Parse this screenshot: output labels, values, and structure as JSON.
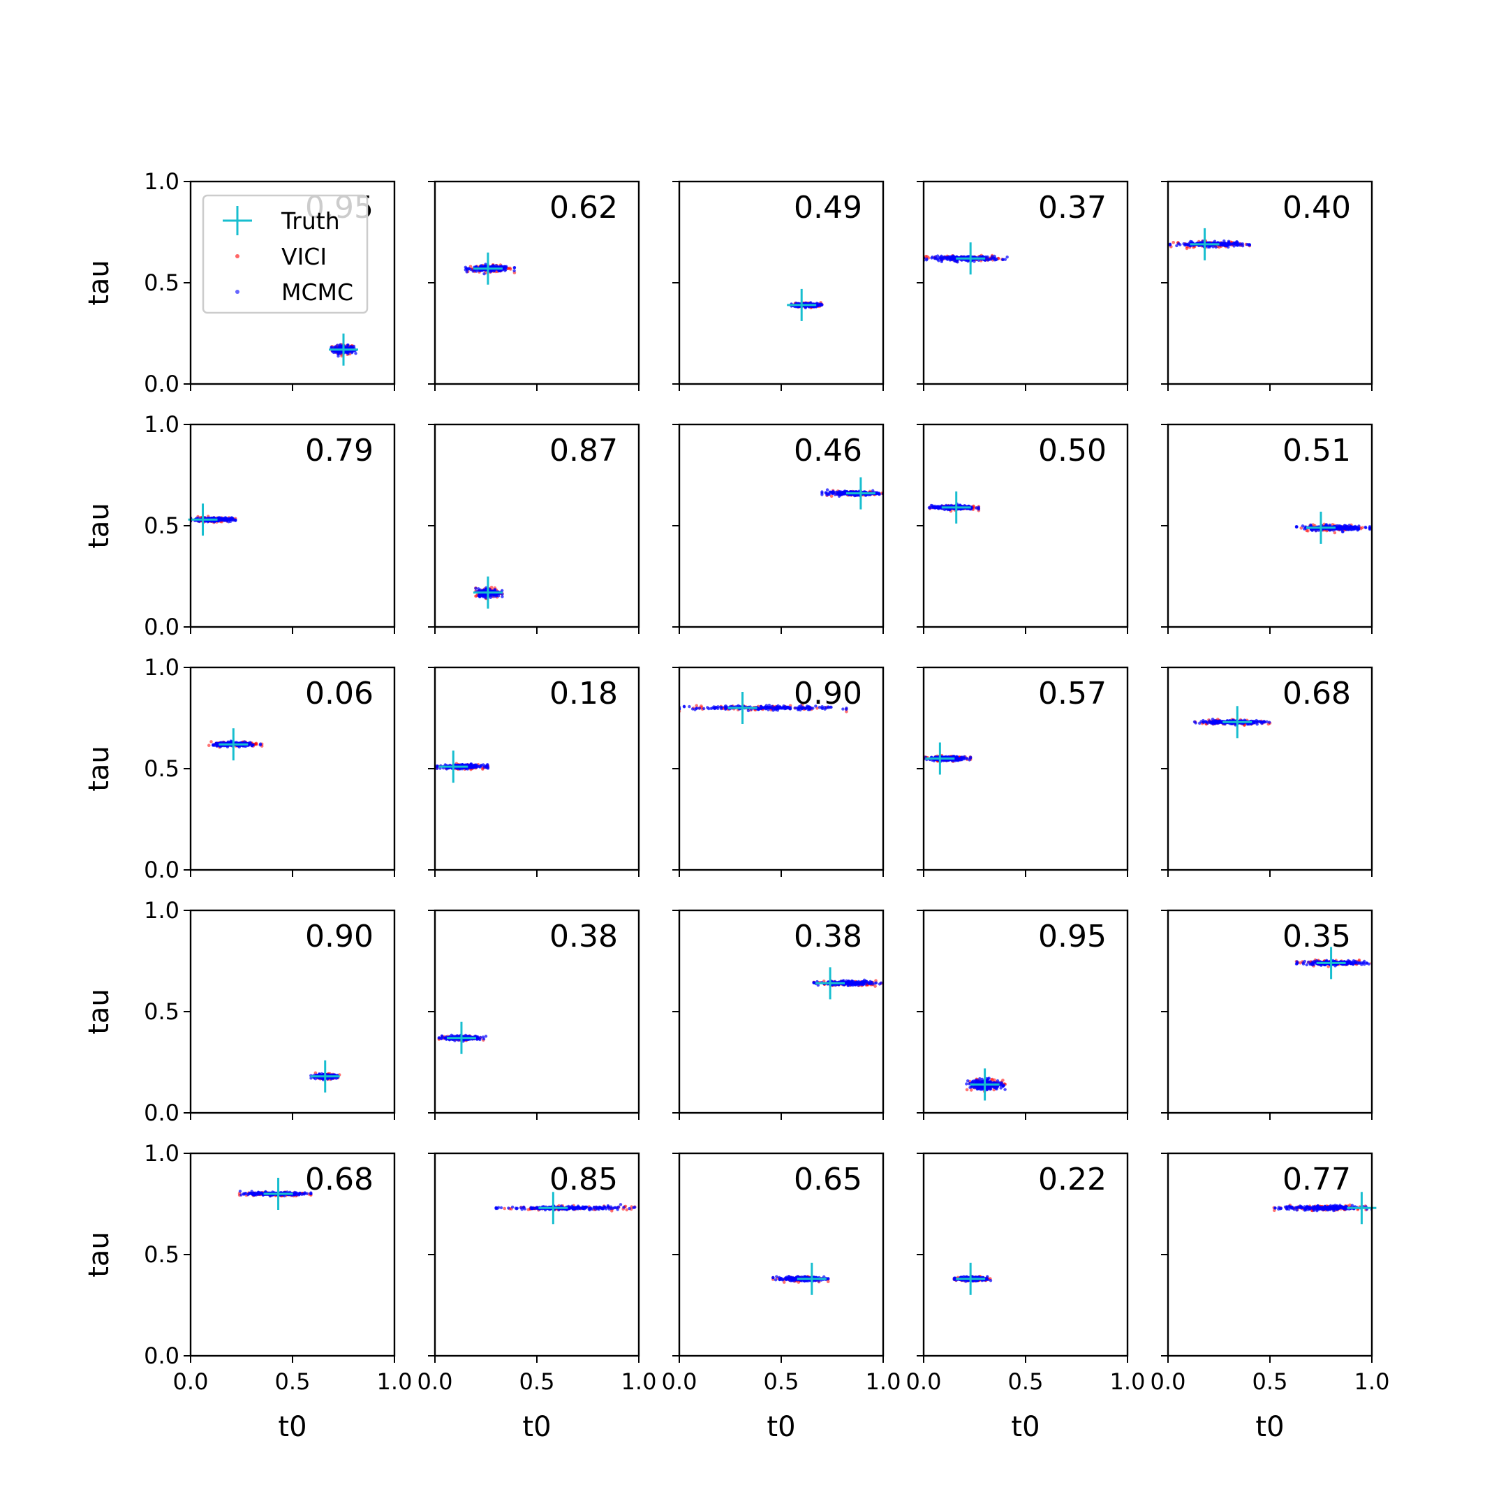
{
  "chart_data": {
    "type": "scatter",
    "rows": 5,
    "cols": 5,
    "xlabel": "t0",
    "ylabel": "tau",
    "xlim": [
      0,
      1
    ],
    "ylim": [
      0,
      1
    ],
    "xticks": [
      0,
      0.5,
      1
    ],
    "yticks": [
      0,
      0.5,
      1
    ],
    "xtick_labels": [
      "0.0",
      "0.5",
      "1.0"
    ],
    "ytick_labels": [
      "0.0",
      "0.5",
      "1.0"
    ],
    "legend": {
      "placement": "upper-left",
      "panel": 0,
      "entries": [
        {
          "label": "Truth",
          "color": "#17becf",
          "marker": "plus"
        },
        {
          "label": "VICI",
          "color": "#ff0000",
          "marker": "dot"
        },
        {
          "label": "MCMC",
          "color": "#0000ff",
          "marker": "dot"
        }
      ]
    },
    "colors": {
      "truth": "#17becf",
      "vici": "#ff0000",
      "mcmc": "#0000ff"
    },
    "panels": [
      {
        "label": "0.95",
        "truth": [
          0.75,
          0.17
        ],
        "t0_range": [
          0.69,
          0.81
        ],
        "tau_spread": 0.012
      },
      {
        "label": "0.62",
        "truth": [
          0.26,
          0.57
        ],
        "t0_range": [
          0.15,
          0.39
        ],
        "tau_spread": 0.008
      },
      {
        "label": "0.49",
        "truth": [
          0.6,
          0.39
        ],
        "t0_range": [
          0.55,
          0.7
        ],
        "tau_spread": 0.006
      },
      {
        "label": "0.37",
        "truth": [
          0.23,
          0.62
        ],
        "t0_range": [
          0.0,
          0.41
        ],
        "tau_spread": 0.007
      },
      {
        "label": "0.40",
        "truth": [
          0.18,
          0.69
        ],
        "t0_range": [
          0.01,
          0.4
        ],
        "tau_spread": 0.007
      },
      {
        "label": "0.79",
        "truth": [
          0.06,
          0.53
        ],
        "t0_range": [
          0.0,
          0.22
        ],
        "tau_spread": 0.006
      },
      {
        "label": "0.87",
        "truth": [
          0.26,
          0.17
        ],
        "t0_range": [
          0.2,
          0.33
        ],
        "tau_spread": 0.012
      },
      {
        "label": "0.46",
        "truth": [
          0.89,
          0.66
        ],
        "t0_range": [
          0.7,
          1.0
        ],
        "tau_spread": 0.006
      },
      {
        "label": "0.50",
        "truth": [
          0.16,
          0.59
        ],
        "t0_range": [
          0.02,
          0.27
        ],
        "tau_spread": 0.006
      },
      {
        "label": "0.51",
        "truth": [
          0.75,
          0.49
        ],
        "t0_range": [
          0.63,
          0.99
        ],
        "tau_spread": 0.008
      },
      {
        "label": "0.06",
        "truth": [
          0.21,
          0.62
        ],
        "t0_range": [
          0.09,
          0.35
        ],
        "tau_spread": 0.006
      },
      {
        "label": "0.18",
        "truth": [
          0.09,
          0.51
        ],
        "t0_range": [
          0.01,
          0.26
        ],
        "tau_spread": 0.006
      },
      {
        "label": "0.90",
        "truth": [
          0.31,
          0.8
        ],
        "t0_range": [
          0.0,
          0.82
        ],
        "tau_spread": 0.006
      },
      {
        "label": "0.57",
        "truth": [
          0.08,
          0.55
        ],
        "t0_range": [
          0.0,
          0.23
        ],
        "tau_spread": 0.006
      },
      {
        "label": "0.68",
        "truth": [
          0.34,
          0.73
        ],
        "t0_range": [
          0.13,
          0.5
        ],
        "tau_spread": 0.006
      },
      {
        "label": "0.90",
        "truth": [
          0.66,
          0.18
        ],
        "t0_range": [
          0.59,
          0.73
        ],
        "tau_spread": 0.006
      },
      {
        "label": "0.38",
        "truth": [
          0.13,
          0.37
        ],
        "t0_range": [
          0.02,
          0.25
        ],
        "tau_spread": 0.006
      },
      {
        "label": "0.38",
        "truth": [
          0.74,
          0.64
        ],
        "t0_range": [
          0.66,
          0.99
        ],
        "tau_spread": 0.006
      },
      {
        "label": "0.95",
        "truth": [
          0.3,
          0.14
        ],
        "t0_range": [
          0.21,
          0.4
        ],
        "tau_spread": 0.015
      },
      {
        "label": "0.35",
        "truth": [
          0.8,
          0.74
        ],
        "t0_range": [
          0.63,
          1.0
        ],
        "tau_spread": 0.006
      },
      {
        "label": "0.68",
        "truth": [
          0.43,
          0.8
        ],
        "t0_range": [
          0.24,
          0.59
        ],
        "tau_spread": 0.005
      },
      {
        "label": "0.85",
        "truth": [
          0.58,
          0.73
        ],
        "t0_range": [
          0.3,
          0.98
        ],
        "tau_spread": 0.005
      },
      {
        "label": "0.65",
        "truth": [
          0.65,
          0.38
        ],
        "t0_range": [
          0.46,
          0.73
        ],
        "tau_spread": 0.006
      },
      {
        "label": "0.22",
        "truth": [
          0.23,
          0.38
        ],
        "t0_range": [
          0.15,
          0.33
        ],
        "tau_spread": 0.006
      },
      {
        "label": "0.77",
        "truth": [
          0.95,
          0.73
        ],
        "t0_range": [
          0.52,
          1.0
        ],
        "tau_spread": 0.007
      }
    ]
  }
}
